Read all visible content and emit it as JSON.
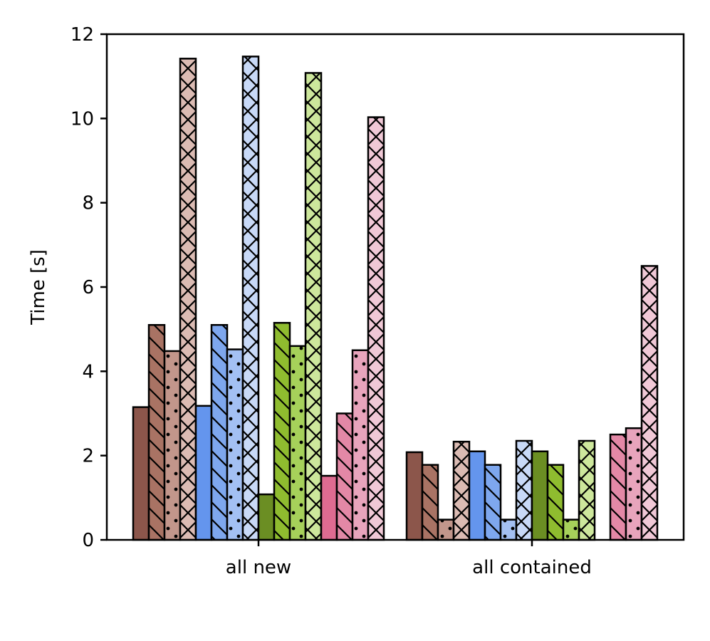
{
  "chart_data": {
    "type": "bar",
    "title": "",
    "xlabel": "",
    "ylabel": "Time [s]",
    "ylim": [
      0,
      12
    ],
    "yticks": [
      "0",
      "2",
      "4",
      "6",
      "8",
      "10",
      "12"
    ],
    "categories": [
      "all new",
      "all contained"
    ],
    "grid": false,
    "legend": "none",
    "series": [
      {
        "color": "#8c564b",
        "hatch": "none",
        "values": [
          3.15,
          2.08
        ]
      },
      {
        "color": "#a97364",
        "hatch": "diag",
        "values": [
          5.1,
          1.78
        ]
      },
      {
        "color": "#c2968b",
        "hatch": "dots",
        "values": [
          4.48,
          0.48
        ]
      },
      {
        "color": "#dbbbb3",
        "hatch": "cross",
        "values": [
          11.42,
          2.33
        ]
      },
      {
        "color": "#6495ed",
        "hatch": "none",
        "values": [
          3.18,
          2.1
        ]
      },
      {
        "color": "#7ea7ee",
        "hatch": "diag",
        "values": [
          5.1,
          1.78
        ]
      },
      {
        "color": "#a3c0f3",
        "hatch": "dots",
        "values": [
          4.52,
          0.48
        ]
      },
      {
        "color": "#c8d9f7",
        "hatch": "cross",
        "values": [
          11.47,
          2.35
        ]
      },
      {
        "color": "#6b8e23",
        "hatch": "none",
        "values": [
          1.08,
          2.1
        ]
      },
      {
        "color": "#8fbc2f",
        "hatch": "diag",
        "values": [
          5.15,
          1.78
        ]
      },
      {
        "color": "#a6d15a",
        "hatch": "dots",
        "values": [
          4.6,
          0.48
        ]
      },
      {
        "color": "#cde79c",
        "hatch": "cross",
        "values": [
          11.08,
          2.35
        ]
      },
      {
        "color": "#de6b91",
        "hatch": "none",
        "values": [
          1.52,
          null
        ]
      },
      {
        "color": "#e388a6",
        "hatch": "diag",
        "values": [
          3.0,
          2.5
        ]
      },
      {
        "color": "#e8a4bc",
        "hatch": "dots",
        "values": [
          4.5,
          2.65
        ]
      },
      {
        "color": "#f0c8d6",
        "hatch": "cross",
        "values": [
          10.03,
          6.5
        ]
      }
    ]
  }
}
